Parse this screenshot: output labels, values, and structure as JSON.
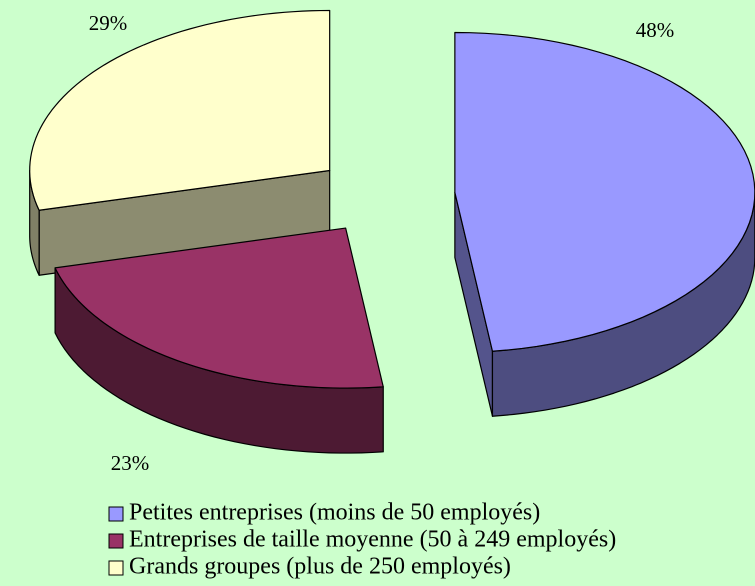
{
  "chart_data": {
    "type": "pie3d",
    "categories": [
      "Petites entreprises (moins de 50 employés)",
      "Entreprises de taille moyenne (50 à 249 employés)",
      "Grands groupes (plus de 250 employés)"
    ],
    "values": [
      48,
      23,
      29
    ],
    "value_labels": [
      "48%",
      "23%",
      "29%"
    ],
    "colors": [
      "#9999ff",
      "#993366",
      "#ffffcc"
    ],
    "legend": "bottom"
  }
}
